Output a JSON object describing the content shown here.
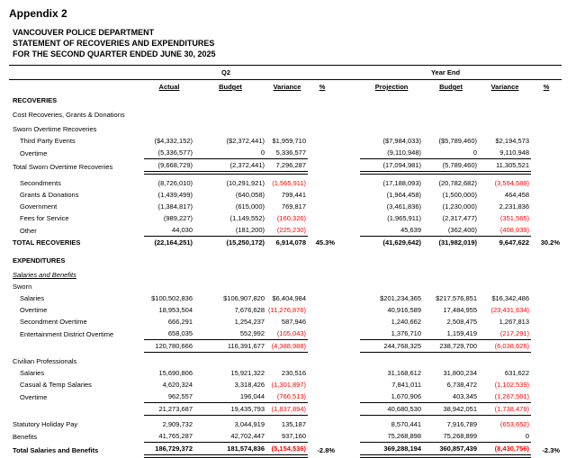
{
  "page": {
    "appendix": "Appendix 2",
    "title_lines": [
      "VANCOUVER POLICE DEPARTMENT",
      "STATEMENT OF RECOVERIES AND EXPENDITURES",
      "FOR THE SECOND QUARTER ENDED JUNE 30, 2025"
    ]
  },
  "colors": {
    "unfavourable_variance": "#ff0000",
    "text": "#000000",
    "background": "#ffffff"
  },
  "table": {
    "group_headers": {
      "q2": "Q2",
      "year_end": "Year End"
    },
    "column_headers": [
      "Actual",
      "Budget",
      "Variance",
      "%",
      "Projection",
      "Budget",
      "Variance",
      "%"
    ],
    "rows": [
      {
        "type": "section",
        "label": "RECOVERIES"
      },
      {
        "type": "spacer",
        "size": "sm"
      },
      {
        "type": "text",
        "label": "Cost Recoveries, Grants & Donations"
      },
      {
        "type": "spacer",
        "size": "sm"
      },
      {
        "type": "text",
        "label": "Sworn Overtime Recoveries"
      },
      {
        "type": "data",
        "label": "Third Party Events",
        "indent": 1,
        "values": [
          "($4,332,152)",
          "($2,372,441)",
          "$1,959,710",
          "",
          "($7,984,033)",
          "($5,789,460)",
          "$2,194,573",
          ""
        ],
        "red": [],
        "rule": "none"
      },
      {
        "type": "data",
        "label": "Overtime",
        "indent": 1,
        "values": [
          "(5,336,577)",
          "0",
          "5,336,577",
          "",
          "(9,110,948)",
          "0",
          "9,110,948",
          ""
        ],
        "red": [],
        "rule": "single"
      },
      {
        "type": "data",
        "label": "Total Sworn Overtime Recoveries",
        "indent": 0,
        "values": [
          "(9,668,729)",
          "(2,372,441)",
          "7,296,287",
          "",
          "(17,094,981)",
          "(5,789,460)",
          "11,305,521",
          ""
        ],
        "red": [],
        "rule": "double"
      },
      {
        "type": "spacer",
        "size": "sm"
      },
      {
        "type": "data",
        "label": "Secondments",
        "indent": 1,
        "values": [
          "(8,726,010)",
          "(10,291,921)",
          "(1,565,911)",
          "",
          "(17,188,093)",
          "(20,782,682)",
          "(3,594,589)",
          ""
        ],
        "red": [
          2,
          6
        ],
        "rule": "none"
      },
      {
        "type": "data",
        "label": "Grants & Donations",
        "indent": 1,
        "values": [
          "(1,439,499)",
          "(640,058)",
          "799,441",
          "",
          "(1,964,458)",
          "(1,500,000)",
          "464,458",
          ""
        ],
        "red": [],
        "rule": "none"
      },
      {
        "type": "data",
        "label": "Government",
        "indent": 1,
        "values": [
          "(1,384,817)",
          "(615,000)",
          "769,817",
          "",
          "(3,461,836)",
          "(1,230,000)",
          "2,231,836",
          ""
        ],
        "red": [],
        "rule": "none"
      },
      {
        "type": "data",
        "label": "Fees for Service",
        "indent": 1,
        "values": [
          "(989,227)",
          "(1,149,552)",
          "(160,326)",
          "",
          "(1,965,911)",
          "(2,317,477)",
          "(351,565)",
          ""
        ],
        "red": [
          2,
          6
        ],
        "rule": "none"
      },
      {
        "type": "data",
        "label": "Other",
        "indent": 1,
        "values": [
          "44,030",
          "(181,200)",
          "(225,230)",
          "",
          "45,639",
          "(362,400)",
          "(408,039)",
          ""
        ],
        "red": [
          2,
          6
        ],
        "rule": "single"
      },
      {
        "type": "data",
        "label": "TOTAL RECOVERIES",
        "indent": 0,
        "bold": true,
        "values": [
          "(22,164,251)",
          "(15,250,172)",
          "6,914,078",
          "45.3%",
          "(41,629,642)",
          "(31,982,019)",
          "9,647,622",
          "30.2%"
        ],
        "red": [],
        "rule": "none"
      },
      {
        "type": "spacer",
        "size": "lg"
      },
      {
        "type": "section",
        "label": "EXPENDITURES"
      },
      {
        "type": "spacer",
        "size": "sm"
      },
      {
        "type": "subhead",
        "label": "Salaries and Benefits"
      },
      {
        "type": "text",
        "label": "Sworn"
      },
      {
        "type": "data",
        "label": "Salaries",
        "indent": 1,
        "values": [
          "$100,502,836",
          "$106,907,820",
          "$6,404,984",
          "",
          "$201,234,365",
          "$217,576,851",
          "$16,342,486",
          ""
        ],
        "red": [],
        "rule": "none"
      },
      {
        "type": "data",
        "label": "Overtime",
        "indent": 1,
        "values": [
          "18,953,504",
          "7,676,628",
          "(11,276,876)",
          "",
          "40,916,589",
          "17,484,955",
          "(23,431,634)",
          ""
        ],
        "red": [
          2,
          6
        ],
        "rule": "none"
      },
      {
        "type": "data",
        "label": "Secondment Overtime",
        "indent": 1,
        "values": [
          "666,291",
          "1,254,237",
          "587,946",
          "",
          "1,240,662",
          "2,508,475",
          "1,267,813",
          ""
        ],
        "red": [],
        "rule": "none"
      },
      {
        "type": "data",
        "label": "Entertainment District Overtime",
        "indent": 1,
        "values": [
          "658,035",
          "552,992",
          "(105,043)",
          "",
          "1,376,710",
          "1,159,419",
          "(217,291)",
          ""
        ],
        "red": [
          2,
          6
        ],
        "rule": "single"
      },
      {
        "type": "data",
        "label": "",
        "indent": 1,
        "values": [
          "120,780,666",
          "116,391,677",
          "(4,388,988)",
          "",
          "244,768,325",
          "238,729,700",
          "(6,038,626)",
          ""
        ],
        "red": [
          2,
          6
        ],
        "rule": "single"
      },
      {
        "type": "spacer",
        "size": "sm"
      },
      {
        "type": "text",
        "label": "Civilian Professionals"
      },
      {
        "type": "data",
        "label": "Salaries",
        "indent": 1,
        "values": [
          "15,690,806",
          "15,921,322",
          "230,516",
          "",
          "31,168,612",
          "31,800,234",
          "631,622",
          ""
        ],
        "red": [],
        "rule": "none"
      },
      {
        "type": "data",
        "label": "Casual & Temp Salaries",
        "indent": 1,
        "values": [
          "4,620,324",
          "3,318,426",
          "(1,301,897)",
          "",
          "7,841,011",
          "6,738,472",
          "(1,102,539)",
          ""
        ],
        "red": [
          2,
          6
        ],
        "rule": "none"
      },
      {
        "type": "data",
        "label": "Overtime",
        "indent": 1,
        "values": [
          "962,557",
          "196,044",
          "(766,513)",
          "",
          "1,670,906",
          "403,345",
          "(1,267,561)",
          ""
        ],
        "red": [
          2,
          6
        ],
        "rule": "single"
      },
      {
        "type": "data",
        "label": "",
        "indent": 1,
        "values": [
          "21,273,687",
          "19,435,793",
          "(1,837,894)",
          "",
          "40,680,530",
          "38,942,051",
          "(1,738,479)",
          ""
        ],
        "red": [
          2,
          6
        ],
        "rule": "single"
      },
      {
        "type": "spacer",
        "size": "sm"
      },
      {
        "type": "data",
        "label": "Statutory Holiday Pay",
        "indent": 0,
        "values": [
          "2,909,732",
          "3,044,919",
          "135,187",
          "",
          "8,570,441",
          "7,916,789",
          "(653,652)",
          ""
        ],
        "red": [
          6
        ],
        "rule": "none"
      },
      {
        "type": "data",
        "label": "Benefits",
        "indent": 0,
        "values": [
          "41,765,287",
          "42,702,447",
          "937,160",
          "",
          "75,268,898",
          "75,268,899",
          "0",
          ""
        ],
        "red": [],
        "rule": "single"
      },
      {
        "type": "data",
        "label": "Total Salaries and Benefits",
        "indent": 0,
        "bold": true,
        "values": [
          "186,729,372",
          "181,574,836",
          "(5,154,536)",
          "-2.8%",
          "369,288,194",
          "360,857,439",
          "(8,430,756)",
          "-2.3%"
        ],
        "red": [
          2,
          6
        ],
        "rule": "double"
      }
    ]
  }
}
